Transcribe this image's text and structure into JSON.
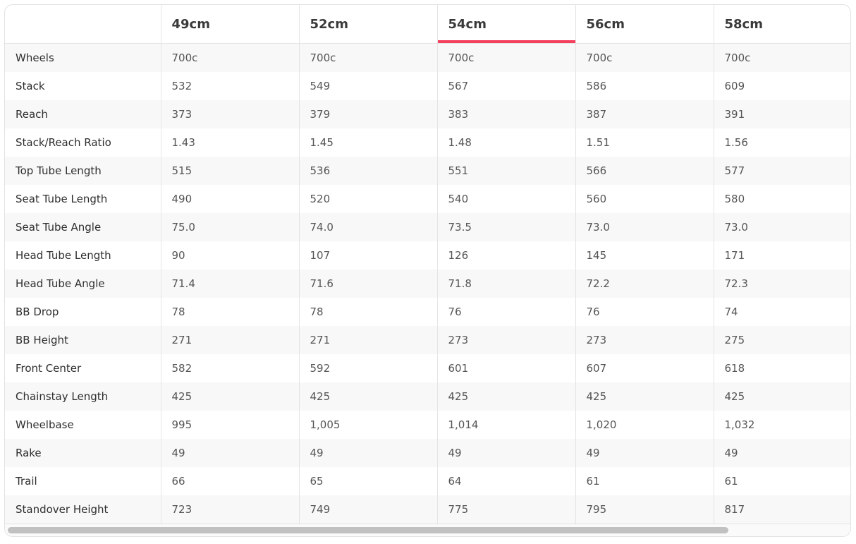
{
  "accent_color": "#f43f5e",
  "columns": [
    "49cm",
    "52cm",
    "54cm",
    "56cm",
    "58cm"
  ],
  "active_column": "54cm",
  "rows": [
    {
      "label": "Wheels",
      "values": [
        "700c",
        "700c",
        "700c",
        "700c",
        "700c"
      ]
    },
    {
      "label": "Stack",
      "values": [
        "532",
        "549",
        "567",
        "586",
        "609"
      ]
    },
    {
      "label": "Reach",
      "values": [
        "373",
        "379",
        "383",
        "387",
        "391"
      ]
    },
    {
      "label": "Stack/Reach Ratio",
      "values": [
        "1.43",
        "1.45",
        "1.48",
        "1.51",
        "1.56"
      ]
    },
    {
      "label": "Top Tube Length",
      "values": [
        "515",
        "536",
        "551",
        "566",
        "577"
      ]
    },
    {
      "label": "Seat Tube Length",
      "values": [
        "490",
        "520",
        "540",
        "560",
        "580"
      ]
    },
    {
      "label": "Seat Tube Angle",
      "values": [
        "75.0",
        "74.0",
        "73.5",
        "73.0",
        "73.0"
      ]
    },
    {
      "label": "Head Tube Length",
      "values": [
        "90",
        "107",
        "126",
        "145",
        "171"
      ]
    },
    {
      "label": "Head Tube Angle",
      "values": [
        "71.4",
        "71.6",
        "71.8",
        "72.2",
        "72.3"
      ]
    },
    {
      "label": "BB Drop",
      "values": [
        "78",
        "78",
        "76",
        "76",
        "74"
      ]
    },
    {
      "label": "BB Height",
      "values": [
        "271",
        "271",
        "273",
        "273",
        "275"
      ]
    },
    {
      "label": "Front Center",
      "values": [
        "582",
        "592",
        "601",
        "607",
        "618"
      ]
    },
    {
      "label": "Chainstay Length",
      "values": [
        "425",
        "425",
        "425",
        "425",
        "425"
      ]
    },
    {
      "label": "Wheelbase",
      "values": [
        "995",
        "1,005",
        "1,014",
        "1,020",
        "1,032"
      ]
    },
    {
      "label": "Rake",
      "values": [
        "49",
        "49",
        "49",
        "49",
        "49"
      ]
    },
    {
      "label": "Trail",
      "values": [
        "66",
        "65",
        "64",
        "61",
        "61"
      ]
    },
    {
      "label": "Standover Height",
      "values": [
        "723",
        "749",
        "775",
        "795",
        "817"
      ]
    }
  ]
}
